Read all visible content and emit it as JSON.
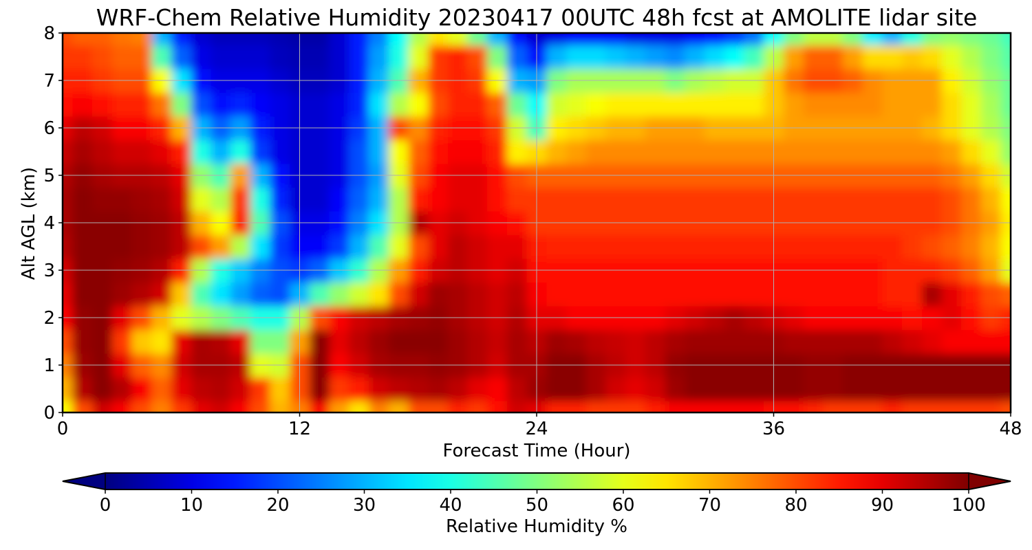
{
  "chart_data": {
    "type": "heatmap",
    "title": "WRF-Chem Relative Humidity 20230417 00UTC 48h fcst at AMOLITE lidar site",
    "xlabel": "Forecast Time (Hour)",
    "ylabel": "Alt AGL (km)",
    "xlim": [
      0,
      48
    ],
    "ylim": [
      0,
      8
    ],
    "x_ticks": [
      0,
      12,
      24,
      36,
      48
    ],
    "y_ticks": [
      0,
      1,
      2,
      3,
      4,
      5,
      6,
      7,
      8
    ],
    "grid": true,
    "colorbar": {
      "label": "Relative Humidity %",
      "orientation": "horizontal",
      "position": "bottom",
      "extend": "both",
      "colormap": "jet",
      "range": [
        0,
        100
      ],
      "ticks": [
        0,
        10,
        20,
        30,
        40,
        50,
        60,
        70,
        80,
        90,
        100
      ]
    },
    "x": [
      0,
      1,
      2,
      3,
      4,
      5,
      6,
      7,
      8,
      9,
      10,
      11,
      12,
      13,
      14,
      15,
      16,
      17,
      18,
      19,
      20,
      21,
      22,
      23,
      24,
      25,
      26,
      27,
      28,
      29,
      30,
      31,
      32,
      33,
      34,
      35,
      36,
      37,
      38,
      39,
      40,
      41,
      42,
      43,
      44,
      45,
      46,
      47,
      48
    ],
    "y": [
      0,
      0.5,
      1,
      1.5,
      2,
      2.5,
      3,
      3.5,
      4,
      4.5,
      5,
      5.5,
      6,
      6.5,
      7,
      7.5,
      8
    ],
    "z_note": "rows ordered by y (0 to 8 km), columns by x (0 to 48 h), values in % relative humidity",
    "z": [
      [
        62,
        80,
        92,
        88,
        80,
        75,
        82,
        90,
        92,
        88,
        80,
        70,
        75,
        88,
        72,
        65,
        75,
        70,
        80,
        80,
        84,
        82,
        86,
        92,
        90,
        84,
        84,
        82,
        82,
        82,
        85,
        88,
        88,
        88,
        88,
        88,
        86,
        86,
        84,
        82,
        82,
        82,
        84,
        82,
        82,
        82,
        82,
        82,
        80
      ],
      [
        70,
        95,
        99,
        95,
        88,
        78,
        90,
        94,
        95,
        92,
        82,
        68,
        80,
        99,
        82,
        85,
        92,
        94,
        95,
        96,
        94,
        90,
        88,
        94,
        97,
        99,
        99,
        96,
        92,
        90,
        92,
        97,
        99,
        99,
        99,
        99,
        99,
        99,
        98,
        98,
        99,
        99,
        99,
        99,
        99,
        99,
        99,
        99,
        99
      ],
      [
        75,
        97,
        99,
        90,
        78,
        74,
        92,
        96,
        96,
        94,
        60,
        58,
        80,
        99,
        88,
        92,
        96,
        97,
        97,
        98,
        97,
        95,
        92,
        96,
        96,
        99,
        99,
        96,
        94,
        92,
        94,
        98,
        99,
        99,
        99,
        99,
        99,
        99,
        98,
        98,
        99,
        99,
        99,
        99,
        99,
        99,
        99,
        99,
        99
      ],
      [
        80,
        98,
        99,
        82,
        68,
        65,
        90,
        96,
        95,
        90,
        50,
        50,
        72,
        99,
        90,
        94,
        97,
        99,
        99,
        99,
        97,
        95,
        93,
        96,
        94,
        97,
        96,
        94,
        93,
        92,
        94,
        96,
        97,
        97,
        97,
        97,
        97,
        96,
        96,
        96,
        96,
        96,
        94,
        92,
        90,
        88,
        88,
        88,
        88
      ],
      [
        88,
        98,
        99,
        90,
        80,
        70,
        60,
        55,
        50,
        45,
        40,
        40,
        55,
        80,
        88,
        92,
        94,
        96,
        97,
        98,
        96,
        94,
        92,
        95,
        90,
        90,
        88,
        88,
        88,
        88,
        88,
        90,
        92,
        94,
        96,
        94,
        92,
        90,
        88,
        88,
        88,
        88,
        88,
        86,
        88,
        90,
        86,
        82,
        84
      ],
      [
        90,
        99,
        99,
        97,
        95,
        92,
        68,
        45,
        35,
        28,
        22,
        20,
        30,
        45,
        52,
        58,
        65,
        80,
        92,
        97,
        96,
        94,
        92,
        94,
        88,
        86,
        86,
        86,
        86,
        86,
        86,
        86,
        86,
        86,
        86,
        86,
        86,
        86,
        86,
        86,
        86,
        86,
        84,
        84,
        96,
        90,
        85,
        80,
        78
      ],
      [
        92,
        99,
        99,
        98,
        97,
        95,
        85,
        55,
        40,
        32,
        25,
        20,
        18,
        22,
        32,
        42,
        55,
        72,
        85,
        92,
        94,
        92,
        90,
        92,
        86,
        86,
        86,
        86,
        86,
        86,
        86,
        86,
        86,
        86,
        86,
        86,
        86,
        86,
        86,
        86,
        86,
        86,
        84,
        84,
        84,
        82,
        78,
        72,
        60
      ],
      [
        95,
        99,
        99,
        99,
        98,
        97,
        94,
        80,
        72,
        55,
        35,
        18,
        12,
        12,
        18,
        30,
        45,
        60,
        80,
        90,
        94,
        92,
        90,
        90,
        85,
        84,
        84,
        84,
        84,
        84,
        84,
        84,
        84,
        84,
        84,
        84,
        84,
        84,
        84,
        84,
        84,
        84,
        84,
        82,
        80,
        78,
        75,
        70,
        62
      ],
      [
        96,
        99,
        99,
        99,
        98,
        97,
        94,
        70,
        62,
        85,
        45,
        20,
        10,
        10,
        14,
        25,
        35,
        55,
        95,
        90,
        92,
        90,
        88,
        86,
        82,
        82,
        82,
        82,
        82,
        82,
        82,
        82,
        82,
        82,
        82,
        82,
        82,
        82,
        82,
        82,
        82,
        82,
        82,
        82,
        82,
        80,
        76,
        72,
        64
      ],
      [
        96,
        99,
        98,
        98,
        97,
        96,
        92,
        60,
        55,
        82,
        40,
        16,
        8,
        8,
        12,
        22,
        30,
        55,
        85,
        88,
        90,
        90,
        86,
        82,
        82,
        82,
        82,
        82,
        82,
        82,
        82,
        82,
        82,
        82,
        82,
        82,
        82,
        82,
        82,
        82,
        82,
        82,
        82,
        82,
        82,
        80,
        76,
        70,
        62
      ],
      [
        95,
        98,
        96,
        95,
        95,
        94,
        90,
        52,
        45,
        72,
        30,
        14,
        8,
        8,
        10,
        20,
        28,
        60,
        80,
        88,
        90,
        90,
        86,
        80,
        78,
        78,
        78,
        78,
        78,
        78,
        78,
        78,
        78,
        78,
        78,
        78,
        78,
        78,
        78,
        78,
        78,
        78,
        78,
        78,
        78,
        76,
        72,
        66,
        58
      ],
      [
        93,
        96,
        94,
        92,
        92,
        90,
        85,
        40,
        30,
        40,
        18,
        10,
        8,
        8,
        10,
        20,
        30,
        62,
        78,
        86,
        88,
        88,
        84,
        64,
        66,
        70,
        72,
        74,
        74,
        74,
        74,
        74,
        74,
        74,
        74,
        74,
        74,
        74,
        74,
        74,
        74,
        74,
        74,
        74,
        74,
        72,
        66,
        60,
        52
      ],
      [
        90,
        94,
        92,
        88,
        88,
        84,
        70,
        30,
        22,
        28,
        15,
        10,
        8,
        8,
        10,
        18,
        30,
        80,
        74,
        84,
        86,
        86,
        82,
        58,
        44,
        64,
        66,
        68,
        70,
        70,
        72,
        72,
        72,
        70,
        70,
        70,
        70,
        72,
        72,
        72,
        72,
        72,
        72,
        72,
        70,
        66,
        60,
        55,
        50
      ],
      [
        86,
        88,
        86,
        84,
        84,
        76,
        50,
        20,
        14,
        16,
        12,
        10,
        8,
        8,
        10,
        16,
        35,
        55,
        62,
        80,
        84,
        84,
        78,
        48,
        38,
        58,
        60,
        62,
        64,
        64,
        64,
        64,
        64,
        64,
        64,
        64,
        68,
        72,
        74,
        74,
        74,
        74,
        72,
        72,
        72,
        66,
        60,
        54,
        48
      ],
      [
        84,
        84,
        82,
        80,
        80,
        62,
        35,
        14,
        10,
        10,
        10,
        8,
        6,
        6,
        8,
        15,
        30,
        45,
        70,
        82,
        84,
        82,
        62,
        30,
        28,
        50,
        54,
        54,
        54,
        54,
        54,
        50,
        54,
        56,
        58,
        58,
        68,
        76,
        80,
        80,
        78,
        74,
        72,
        72,
        72,
        64,
        58,
        52,
        48
      ],
      [
        82,
        82,
        80,
        78,
        78,
        45,
        22,
        10,
        8,
        8,
        8,
        6,
        5,
        5,
        8,
        15,
        28,
        40,
        60,
        82,
        84,
        80,
        50,
        22,
        14,
        30,
        34,
        34,
        32,
        30,
        28,
        26,
        30,
        34,
        38,
        44,
        56,
        72,
        78,
        78,
        72,
        66,
        66,
        68,
        66,
        60,
        55,
        50,
        46
      ],
      [
        80,
        78,
        78,
        76,
        75,
        30,
        15,
        8,
        6,
        6,
        6,
        5,
        4,
        4,
        8,
        15,
        25,
        38,
        55,
        65,
        60,
        48,
        30,
        14,
        8,
        10,
        12,
        12,
        12,
        10,
        10,
        10,
        12,
        14,
        18,
        24,
        38,
        50,
        56,
        56,
        50,
        36,
        30,
        40,
        50,
        52,
        50,
        48,
        44
      ]
    ]
  }
}
